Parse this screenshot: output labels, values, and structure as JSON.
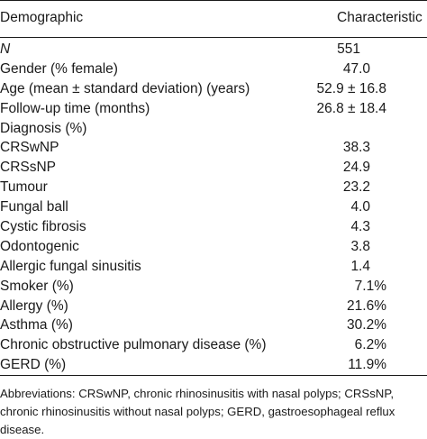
{
  "table": {
    "headers": {
      "left": "Demographic",
      "right": "Characteristic"
    },
    "rows": [
      {
        "label": "N",
        "value": "551",
        "italic": true,
        "kind": "n"
      },
      {
        "label": "Gender (% female)",
        "value": "47.0",
        "kind": "plain"
      },
      {
        "label": "Age (mean ± standard deviation) (years)",
        "value": "52.9 ± 16.8",
        "kind": "pm"
      },
      {
        "label": "Follow-up time (months)",
        "value": "26.8 ± 18.4",
        "kind": "pm"
      },
      {
        "label": "Diagnosis (%)",
        "value": "",
        "kind": "header"
      },
      {
        "label": "CRSwNP",
        "value": "38.3",
        "kind": "plain"
      },
      {
        "label": "CRSsNP",
        "value": "24.9",
        "kind": "plain"
      },
      {
        "label": "Tumour",
        "value": "23.2",
        "kind": "plain"
      },
      {
        "label": "Fungal ball",
        "value": "4.0",
        "kind": "plain"
      },
      {
        "label": "Cystic fibrosis",
        "value": "4.3",
        "kind": "plain"
      },
      {
        "label": "Odontogenic",
        "value": "3.8",
        "kind": "plain"
      },
      {
        "label": "Allergic fungal sinusitis",
        "value": "1.4",
        "kind": "plain"
      },
      {
        "label": "Smoker (%)",
        "value": "7.1%",
        "kind": "pct"
      },
      {
        "label": "Allergy (%)",
        "value": "21.6%",
        "kind": "pct"
      },
      {
        "label": "Asthma (%)",
        "value": "30.2%",
        "kind": "pct"
      },
      {
        "label": "Chronic obstructive pulmonary disease (%)",
        "value": "6.2%",
        "kind": "pct"
      },
      {
        "label": "GERD (%)",
        "value": "11.9%",
        "kind": "pct"
      }
    ]
  },
  "footnote": "Abbreviations: CRSwNP, chronic rhinosinusitis with nasal polyps; CRSsNP, chronic rhinosinusitis without nasal polyps; GERD, gastroesophageal reflux disease."
}
